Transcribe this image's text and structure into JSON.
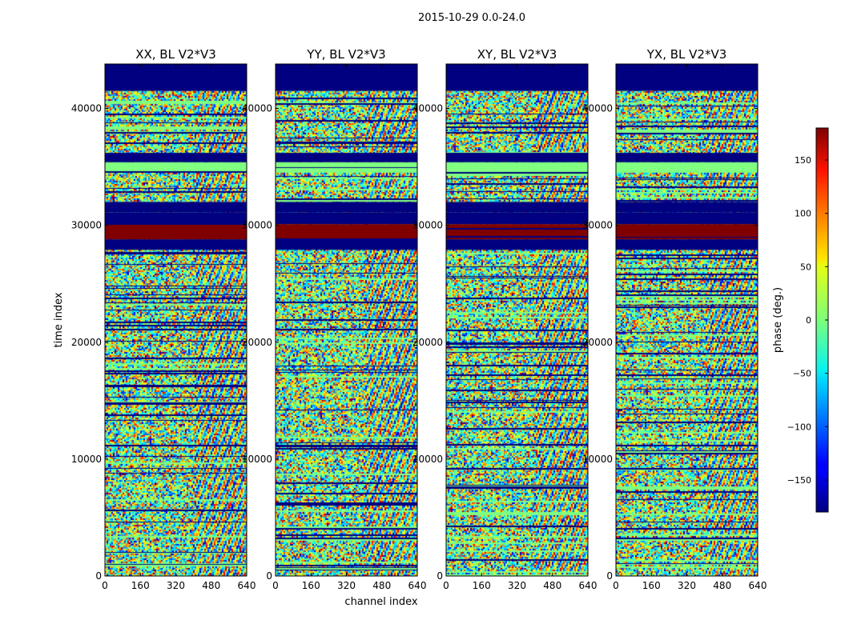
{
  "figure_title": "2015-10-29 0.0-24.0",
  "chart_data": {
    "type": "heatmap",
    "suptitle": "2015-10-29 0.0-24.0",
    "xlabel": "channel index",
    "ylabel": "time index",
    "xlim": [
      0,
      640
    ],
    "ylim": [
      0,
      43800
    ],
    "x_ticks": [
      0,
      160,
      320,
      480,
      640
    ],
    "y_ticks": [
      0,
      10000,
      20000,
      30000,
      40000
    ],
    "panels": [
      {
        "title": "XX, BL V2*V3",
        "correlation": "XX"
      },
      {
        "title": "YY, BL V2*V3",
        "correlation": "YY"
      },
      {
        "title": "XY, BL V2*V3",
        "correlation": "XY"
      },
      {
        "title": "YX, BL V2*V3",
        "correlation": "YX"
      }
    ],
    "colorbar": {
      "label": "phase (deg.)",
      "colormap": "jet",
      "range": [
        -180,
        180
      ],
      "ticks": [
        -150,
        -100,
        -50,
        0,
        50,
        100,
        150
      ],
      "tick_labels": [
        "−150",
        "−100",
        "−50",
        "0",
        "50",
        "100",
        "150"
      ]
    },
    "uniform_bands": [
      {
        "y_range": [
          34500,
          35400
        ],
        "phase": 0,
        "color_name": "green"
      },
      {
        "y_range": [
          35400,
          36200
        ],
        "phase": -180,
        "color_name": "dark-blue"
      },
      {
        "y_range": [
          31100,
          32000
        ],
        "phase": -180,
        "color_name": "dark-blue"
      },
      {
        "y_range": [
          30100,
          31100
        ],
        "phase": -180,
        "color_name": "dark-blue"
      },
      {
        "y_range": [
          28800,
          30100
        ],
        "phase": 180,
        "color_name": "dark-red"
      },
      {
        "y_range": [
          27900,
          28800
        ],
        "phase": -180,
        "color_name": "dark-blue"
      },
      {
        "y_range": [
          41500,
          43800
        ],
        "phase": -180,
        "color_name": "dark-blue"
      }
    ]
  }
}
